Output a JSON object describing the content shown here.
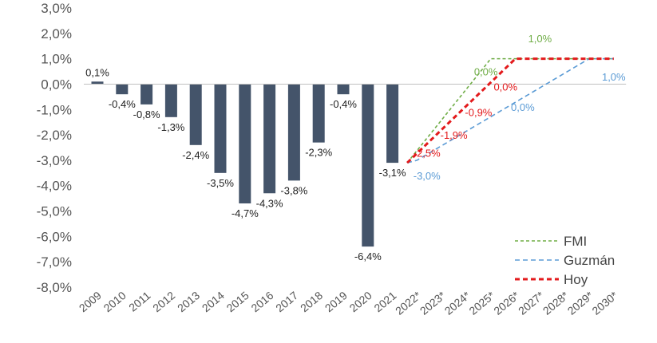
{
  "chart_data": {
    "type": "bar",
    "ylim": [
      -8.0,
      3.0
    ],
    "yticks": [
      "3,0%",
      "2,0%",
      "1,0%",
      "0,0%",
      "-1,0%",
      "-2,0%",
      "-3,0%",
      "-4,0%",
      "-5,0%",
      "-6,0%",
      "-7,0%",
      "-8,0%"
    ],
    "categories": [
      "2009",
      "2010",
      "2011",
      "2012",
      "2013",
      "2014",
      "2015",
      "2016",
      "2017",
      "2018",
      "2019",
      "2020",
      "2021",
      "2022*",
      "2023*",
      "2024*",
      "2025*",
      "2026*",
      "2027*",
      "2028*",
      "2029*",
      "2030*"
    ],
    "bars": {
      "color": "#44546a",
      "values": [
        0.1,
        -0.4,
        -0.8,
        -1.3,
        -2.4,
        -3.5,
        -4.7,
        -4.3,
        -3.8,
        -2.3,
        -0.4,
        -6.4,
        -3.1
      ],
      "labels": [
        "0,1%",
        "-0,4%",
        "-0,8%",
        "-1,3%",
        "-2,4%",
        "-3,5%",
        "-4,7%",
        "-4,3%",
        "-3,8%",
        "-2,3%",
        "-0,4%",
        "-6,4%",
        "-3,1%"
      ]
    },
    "series": [
      {
        "name": "FMI",
        "color": "#70ad47",
        "style": "dotted",
        "points": [
          [
            12.6,
            -3.1
          ],
          [
            16.0,
            1.0
          ],
          [
            21.0,
            1.0
          ]
        ],
        "labels": [
          {
            "x": 15.8,
            "y": 0.5,
            "text": "0,0%"
          },
          {
            "x": 18.0,
            "y": 1.8,
            "text": "1,0%"
          }
        ]
      },
      {
        "name": "Guzmán",
        "color": "#5b9bd5",
        "style": "dashed",
        "points": [
          [
            12.6,
            -3.1
          ],
          [
            13.0,
            -3.0
          ],
          [
            20.0,
            1.0
          ],
          [
            21.0,
            1.0
          ]
        ],
        "labels": [
          {
            "x": 13.4,
            "y": -3.6,
            "text": "-3,0%"
          },
          {
            "x": 17.3,
            "y": -0.9,
            "text": "0,0%"
          },
          {
            "x": 21.0,
            "y": 0.3,
            "text": "1,0%"
          }
        ]
      },
      {
        "name": "Hoy",
        "color": "#e31a1c",
        "style": "dashed",
        "points": [
          [
            12.6,
            -3.1
          ],
          [
            17.0,
            1.0
          ],
          [
            21.0,
            1.0
          ]
        ],
        "labels": [
          {
            "x": 13.4,
            "y": -2.7,
            "text": "-2,5%"
          },
          {
            "x": 14.5,
            "y": -2.0,
            "text": "-1,9%"
          },
          {
            "x": 15.5,
            "y": -1.1,
            "text": "-0,9%"
          },
          {
            "x": 16.6,
            "y": -0.1,
            "text": "0,0%"
          }
        ]
      }
    ],
    "legend": {
      "placement": "bottom-right",
      "entries": [
        {
          "name": "FMI",
          "color": "#70ad47",
          "style": "dotted"
        },
        {
          "name": "Guzmán",
          "color": "#5b9bd5",
          "style": "dashed"
        },
        {
          "name": "Hoy",
          "color": "#e31a1c",
          "style": "dashed"
        }
      ]
    },
    "grid": false
  }
}
